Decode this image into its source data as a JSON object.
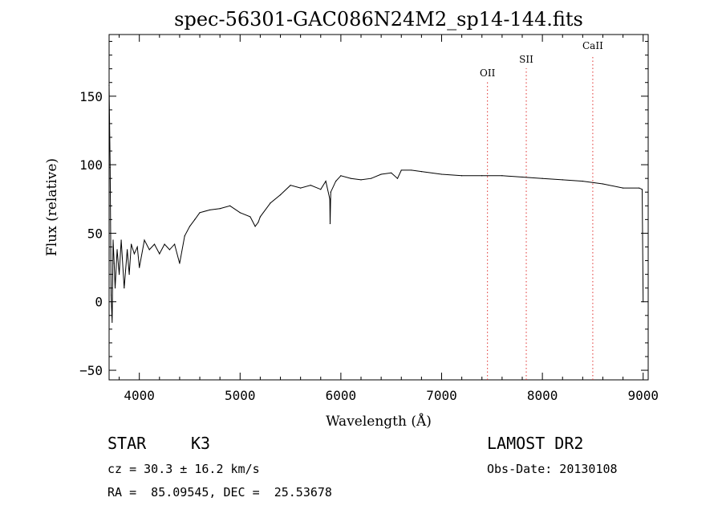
{
  "chart_data": {
    "type": "line",
    "title": "spec-56301-GAC086N24M2_sp14-144.fits",
    "xlabel": "Wavelength (Å)",
    "ylabel": "Flux (relative)",
    "xlim": [
      3700,
      9050
    ],
    "ylim": [
      -57,
      195
    ],
    "x_ticks": [
      4000,
      5000,
      6000,
      7000,
      8000,
      9000
    ],
    "y_ticks": [
      -50,
      0,
      50,
      100,
      150
    ],
    "grid": false,
    "series": [
      {
        "color": "#000000",
        "x": [
          3700,
          3710,
          3720,
          3730,
          3740,
          3750,
          3760,
          3780,
          3800,
          3820,
          3850,
          3880,
          3900,
          3920,
          3950,
          3980,
          4000,
          4050,
          4100,
          4150,
          4200,
          4250,
          4300,
          4350,
          4400,
          4450,
          4500,
          4550,
          4600,
          4700,
          4800,
          4900,
          5000,
          5100,
          5150,
          5180,
          5200,
          5300,
          5400,
          5500,
          5600,
          5700,
          5800,
          5850,
          5890,
          5893,
          5900,
          5950,
          6000,
          6100,
          6200,
          6300,
          6400,
          6500,
          6562,
          6600,
          6700,
          6800,
          7000,
          7200,
          7400,
          7600,
          7800,
          8000,
          8200,
          8400,
          8600,
          8800,
          8960,
          8990,
          9000
        ],
        "y": [
          158,
          98,
          5,
          -15,
          45,
          28,
          10,
          38,
          20,
          45,
          10,
          38,
          20,
          42,
          35,
          40,
          25,
          45,
          38,
          42,
          35,
          42,
          38,
          42,
          28,
          48,
          55,
          60,
          65,
          67,
          68,
          70,
          65,
          62,
          55,
          58,
          62,
          72,
          78,
          85,
          83,
          85,
          82,
          88,
          75,
          57,
          80,
          88,
          92,
          90,
          89,
          90,
          93,
          94,
          90,
          96,
          96,
          95,
          93,
          92,
          92,
          92,
          91,
          90,
          89,
          88,
          86,
          83,
          83,
          82,
          0
        ]
      }
    ],
    "lines": [
      {
        "label": "OII",
        "x": 7455,
        "color": "#e0302e"
      },
      {
        "label": "SII",
        "x": 7840,
        "color": "#e0302e"
      },
      {
        "label": "CaII",
        "x": 8500,
        "color": "#e0302e"
      }
    ]
  },
  "info": {
    "object_class": "STAR",
    "subclass": "K3",
    "survey": "LAMOST DR2",
    "cz": "cz = 30.3 ± 16.2 km/s",
    "obs_date": "Obs-Date: 20130108",
    "coords": "RA =  85.09545, DEC =  25.53678"
  }
}
